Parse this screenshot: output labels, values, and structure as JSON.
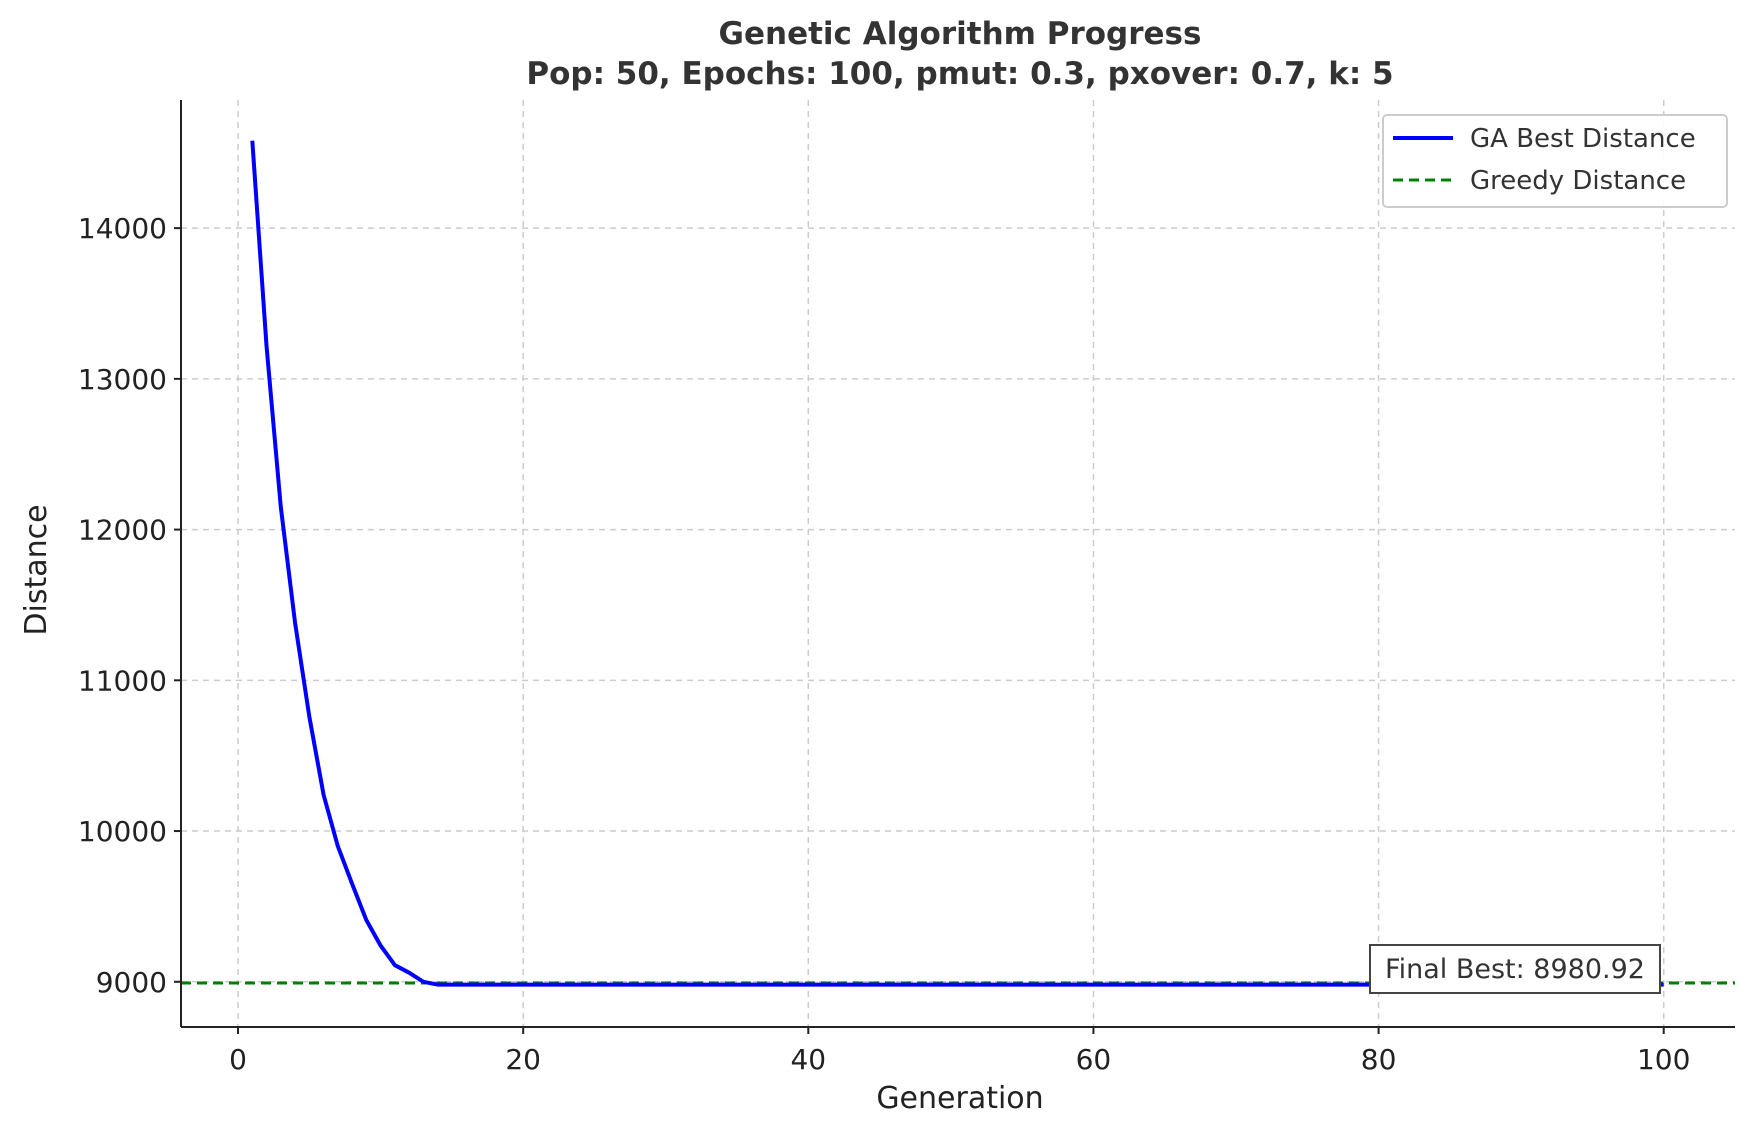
{
  "chart_data": {
    "type": "line",
    "title": "Genetic Algorithm Progress",
    "subtitle": "Pop: 50, Epochs: 100, pmut: 0.3, pxover: 0.7, k: 5",
    "xlabel": "Generation",
    "ylabel": "Distance",
    "xlim": [
      -4,
      105
    ],
    "ylim": [
      8700,
      14850
    ],
    "x_ticks": [
      0,
      20,
      40,
      60,
      80,
      100
    ],
    "y_ticks": [
      9000,
      10000,
      11000,
      12000,
      13000,
      14000
    ],
    "x_tick_labels": [
      "0",
      "20",
      "40",
      "60",
      "80",
      "100"
    ],
    "y_tick_labels": [
      "9000",
      "10000",
      "11000",
      "12000",
      "13000",
      "14000"
    ],
    "grid": true,
    "legend_position": "top-right",
    "series": [
      {
        "name": "GA Best Distance",
        "color": "#0000ff",
        "style": "solid",
        "x": [
          1,
          2,
          3,
          4,
          5,
          6,
          7,
          8,
          9,
          10,
          11,
          12,
          13,
          14,
          15,
          20,
          30,
          40,
          50,
          60,
          70,
          80,
          90,
          100
        ],
        "y": [
          14580,
          13220,
          12150,
          11380,
          10760,
          10240,
          9900,
          9650,
          9410,
          9240,
          9110,
          9060,
          9000,
          8981,
          8981,
          8981,
          8981,
          8981,
          8981,
          8981,
          8981,
          8981,
          8981,
          8981
        ]
      },
      {
        "name": "Greedy Distance",
        "color": "#008000",
        "style": "dashed",
        "y_constant": 8992
      }
    ],
    "annotations": [
      {
        "text": "Final Best: 8980.92",
        "x": 100,
        "y": 8980.92,
        "placement": "above-left"
      }
    ]
  }
}
